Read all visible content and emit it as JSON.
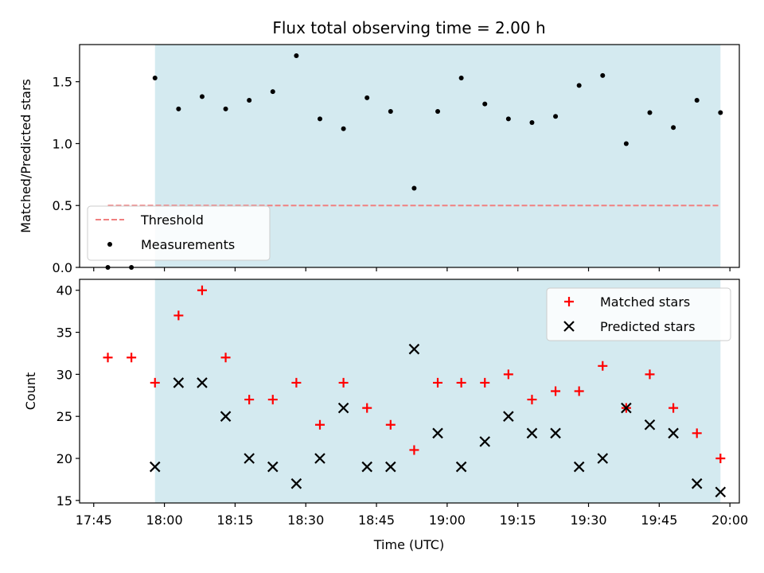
{
  "figure": {
    "title": "Flux total observing time = 2.00 h",
    "xlabel": "Time (UTC)"
  },
  "colors": {
    "shade": "#d4eaf0",
    "threshold": "#f08080",
    "matched": "#ff0000",
    "predicted": "#000000",
    "measurement": "#000000"
  },
  "chart_data": [
    {
      "type": "scatter",
      "name": "ratio-panel",
      "ylabel": "Matched/Predicted stars",
      "ylim": [
        0,
        1.8
      ],
      "yticks": [
        "0.0",
        "0.5",
        "1.0",
        "1.5"
      ],
      "ytick_values": [
        0,
        0.5,
        1.0,
        1.5
      ],
      "xlim": [
        "17:42",
        "20:02"
      ],
      "shaded_span": [
        "17:58",
        "19:58"
      ],
      "threshold": {
        "label": "Threshold",
        "value": 0.5,
        "x_range": [
          "17:48",
          "19:58"
        ]
      },
      "legend": {
        "placement": "lower-left",
        "entries": [
          "Threshold",
          "Measurements"
        ]
      },
      "series": [
        {
          "name": "Measurements",
          "x": [
            "17:48",
            "17:53",
            "17:58",
            "18:03",
            "18:08",
            "18:13",
            "18:18",
            "18:23",
            "18:28",
            "18:33",
            "18:38",
            "18:43",
            "18:48",
            "18:53",
            "18:58",
            "19:03",
            "19:08",
            "19:13",
            "19:18",
            "19:23",
            "19:28",
            "19:33",
            "19:38",
            "19:43",
            "19:48",
            "19:53",
            "19:58"
          ],
          "y": [
            0.0,
            0.0,
            1.53,
            1.28,
            1.38,
            1.28,
            1.35,
            1.42,
            1.71,
            1.2,
            1.12,
            1.37,
            1.26,
            0.64,
            1.26,
            1.53,
            1.32,
            1.2,
            1.17,
            1.22,
            1.47,
            1.55,
            1.0,
            1.25,
            1.13,
            1.35,
            1.25
          ]
        }
      ]
    },
    {
      "type": "scatter",
      "name": "count-panel",
      "ylabel": "Count",
      "ylim": [
        14.7,
        41.3
      ],
      "yticks": [
        "15",
        "20",
        "25",
        "30",
        "35",
        "40"
      ],
      "ytick_values": [
        15,
        20,
        25,
        30,
        35,
        40
      ],
      "xlim": [
        "17:42",
        "20:02"
      ],
      "xticks": [
        "17:45",
        "18:00",
        "18:15",
        "18:30",
        "18:45",
        "19:00",
        "19:15",
        "19:30",
        "19:45",
        "20:00"
      ],
      "shaded_span": [
        "17:58",
        "19:58"
      ],
      "legend": {
        "placement": "upper-right",
        "entries": [
          "Matched stars",
          "Predicted stars"
        ]
      },
      "series": [
        {
          "name": "Matched stars",
          "marker": "plus",
          "x": [
            "17:48",
            "17:53",
            "17:58",
            "18:03",
            "18:08",
            "18:13",
            "18:18",
            "18:23",
            "18:28",
            "18:33",
            "18:38",
            "18:43",
            "18:48",
            "18:53",
            "18:58",
            "19:03",
            "19:08",
            "19:13",
            "19:18",
            "19:23",
            "19:28",
            "19:33",
            "19:38",
            "19:43",
            "19:48",
            "19:53",
            "19:58"
          ],
          "y": [
            32,
            32,
            29,
            37,
            40,
            32,
            27,
            27,
            29,
            24,
            29,
            26,
            24,
            21,
            29,
            29,
            29,
            30,
            27,
            28,
            28,
            31,
            26,
            30,
            26,
            23,
            20
          ]
        },
        {
          "name": "Predicted stars",
          "marker": "x",
          "x": [
            "17:58",
            "18:03",
            "18:08",
            "18:13",
            "18:18",
            "18:23",
            "18:28",
            "18:33",
            "18:38",
            "18:43",
            "18:48",
            "18:53",
            "18:58",
            "19:03",
            "19:08",
            "19:13",
            "19:18",
            "19:23",
            "19:28",
            "19:33",
            "19:38",
            "19:43",
            "19:48",
            "19:53",
            "19:58"
          ],
          "y": [
            19,
            29,
            29,
            25,
            20,
            19,
            17,
            20,
            26,
            19,
            19,
            33,
            23,
            19,
            22,
            25,
            23,
            23,
            19,
            20,
            26,
            24,
            23,
            17,
            16
          ]
        }
      ]
    }
  ]
}
